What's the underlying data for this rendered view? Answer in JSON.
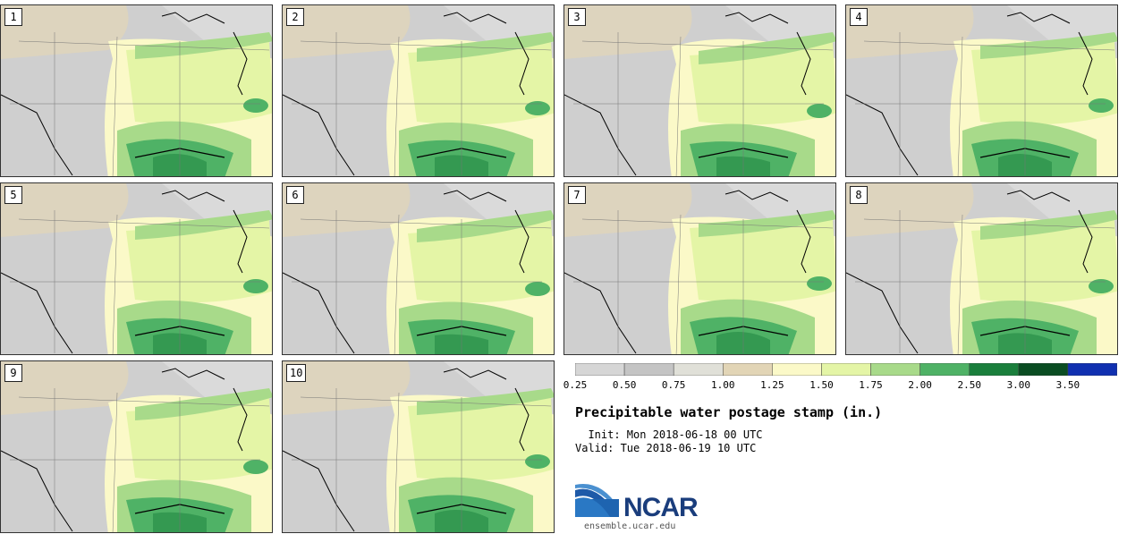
{
  "panels": [
    {
      "number": "1"
    },
    {
      "number": "2"
    },
    {
      "number": "3"
    },
    {
      "number": "4"
    },
    {
      "number": "5"
    },
    {
      "number": "6"
    },
    {
      "number": "7"
    },
    {
      "number": "8"
    },
    {
      "number": "9"
    },
    {
      "number": "10"
    }
  ],
  "colorbar": {
    "colors": [
      "#d6d6d6",
      "#c4c4c4",
      "#e0e0d8",
      "#e2d5b6",
      "#fbf9c8",
      "#e4f5a6",
      "#a8da8a",
      "#4fb266",
      "#1a7f3c",
      "#0a4d22",
      "#1030b0"
    ],
    "labels": [
      "0.25",
      "0.50",
      "0.75",
      "1.00",
      "1.25",
      "1.50",
      "1.75",
      "2.00",
      "2.50",
      "3.00",
      "3.50"
    ]
  },
  "title": "Precipitable water postage stamp (in.)",
  "init": "  Init: Mon 2018-06-18 00 UTC",
  "valid": "Valid: Tue 2018-06-19 10 UTC",
  "logo": {
    "text": "NCAR",
    "url": "ensemble.ucar.edu"
  }
}
